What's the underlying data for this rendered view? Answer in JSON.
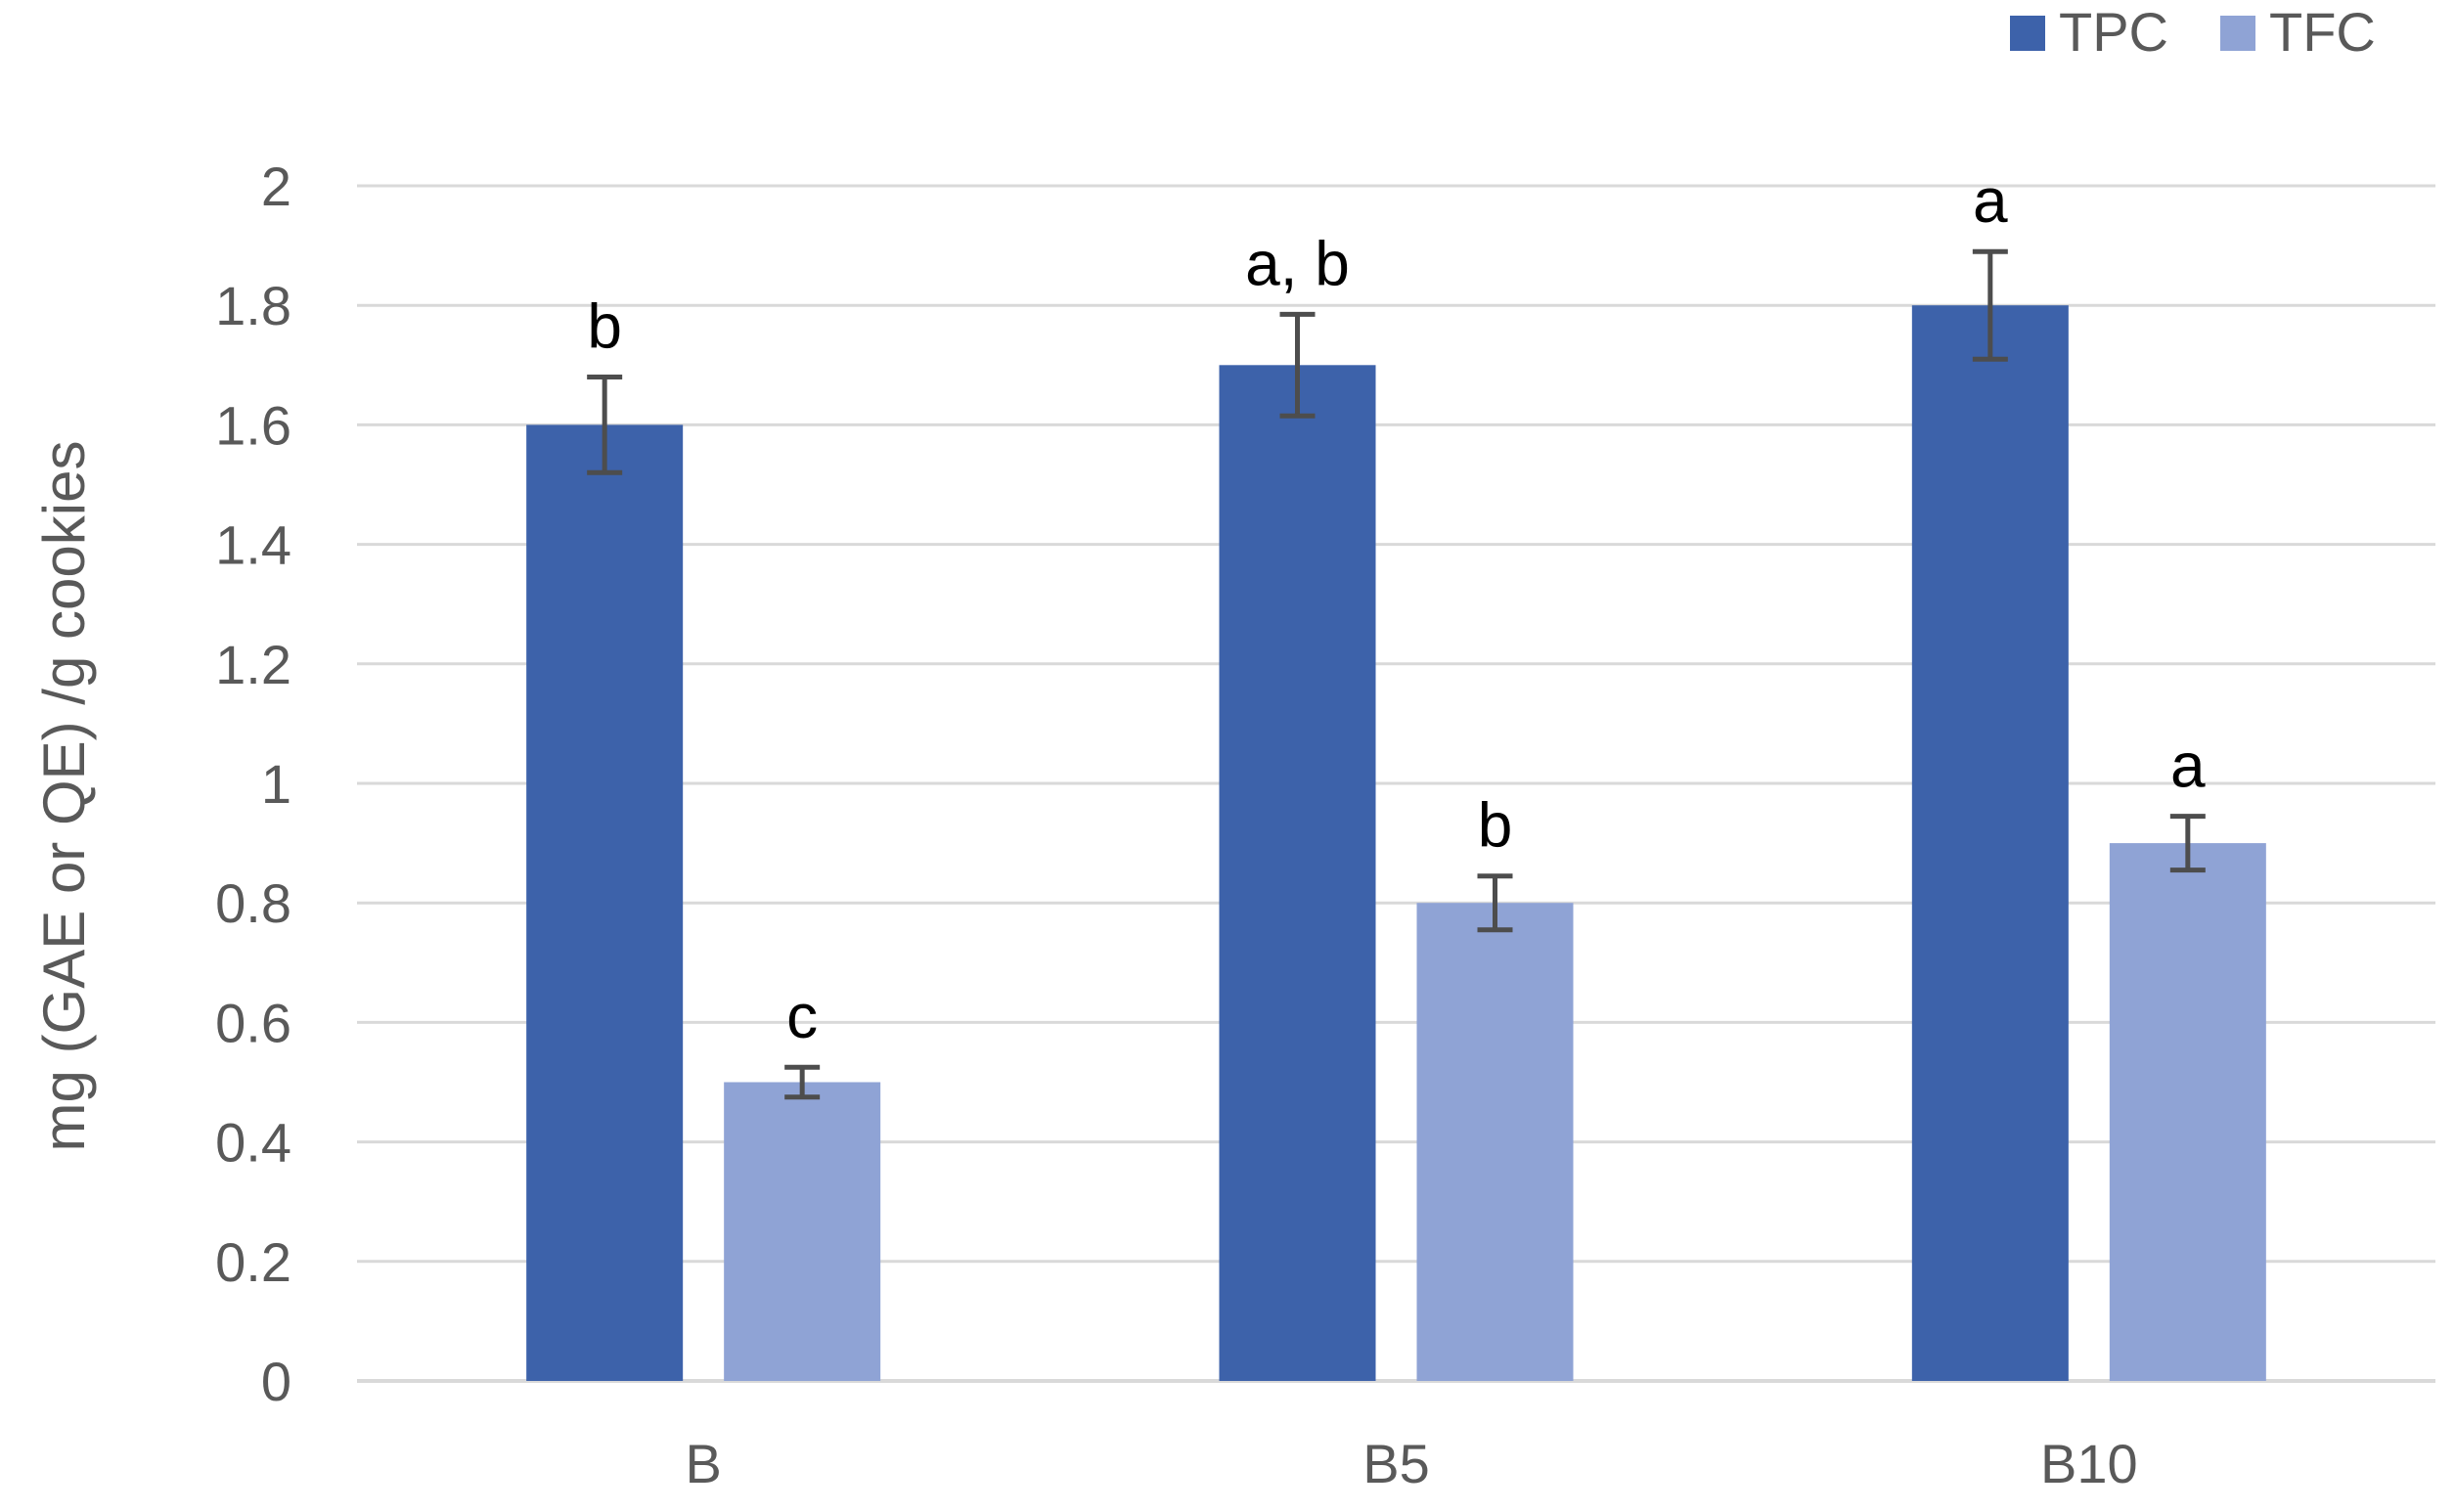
{
  "chart_data": {
    "type": "bar",
    "categories": [
      "B",
      "B5",
      "B10"
    ],
    "series": [
      {
        "name": "TPC",
        "color": "#3D62AA",
        "values": [
          1.6,
          1.7,
          1.8
        ],
        "errors": [
          0.08,
          0.085,
          0.09
        ],
        "significance": [
          "b",
          "a, b",
          "a"
        ]
      },
      {
        "name": "TFC",
        "color": "#8FA3D5",
        "values": [
          0.5,
          0.8,
          0.9
        ],
        "errors": [
          0.025,
          0.045,
          0.045
        ],
        "significance": [
          "c",
          "b",
          "a"
        ]
      }
    ],
    "title": "",
    "xlabel": "",
    "ylabel": "mg (GAE or QE) /g cookies",
    "ylim": [
      0,
      2
    ],
    "yticks": [
      0,
      0.2,
      0.4,
      0.6,
      0.8,
      1,
      1.2,
      1.4,
      1.6,
      1.8,
      2
    ],
    "ytick_labels": [
      "0",
      "0.2",
      "0.4",
      "0.6",
      "0.8",
      "1",
      "1.2",
      "1.4",
      "1.6",
      "1.8",
      "2"
    ],
    "grid": true,
    "legend": "top-right",
    "gridline_color": "#D9D9D9",
    "error_bar_color": "#4D4D4D"
  }
}
